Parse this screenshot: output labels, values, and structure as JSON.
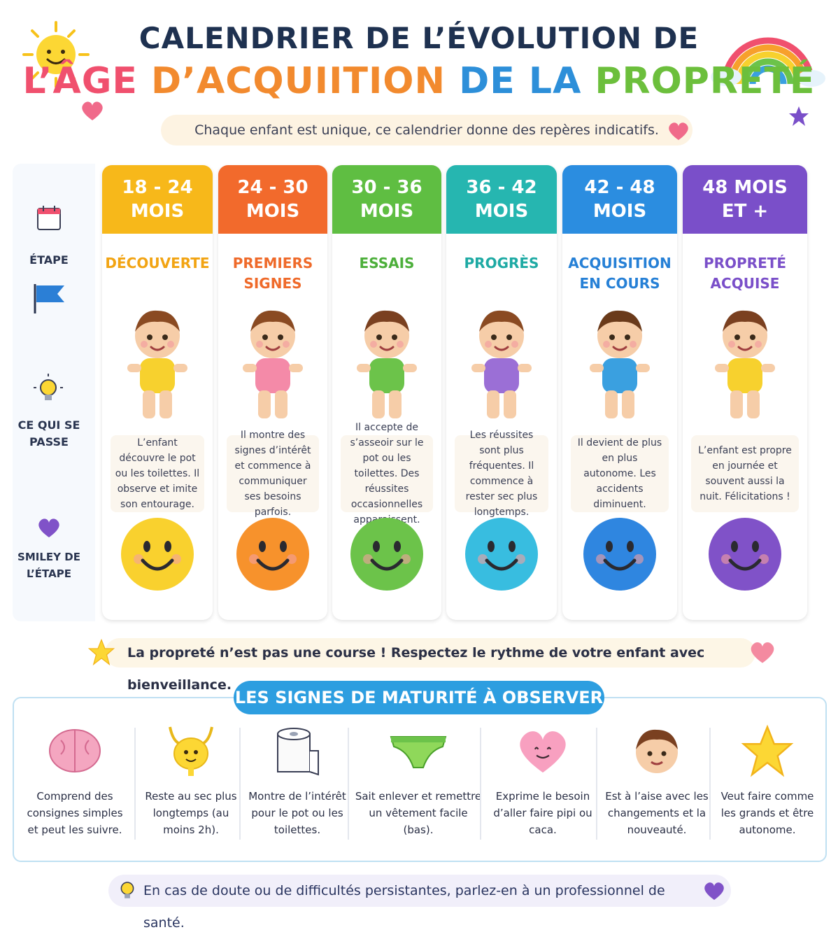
{
  "header": {
    "title_line1": "CALENDRIER DE L’ÉVOLUTION DE",
    "title_line2_parts": [
      {
        "text": "L’ÂGE ",
        "color": "#f0506e"
      },
      {
        "text": "D’ACQUIITION ",
        "color": "#f28a2e"
      },
      {
        "text": "DE LA ",
        "color": "#2d8fd9"
      },
      {
        "text": "PROPRETÉ",
        "color": "#6cbf3c"
      }
    ],
    "subtitle": "Chaque enfant est unique, ce calendrier donne des repères indicatifs."
  },
  "row_labels": {
    "calendar_icon": "calendar-icon",
    "stage": "ÉTAPE",
    "what_happens": "CE QUI SE PASSE",
    "smiley": "SMILEY DE L’ÉTAPE"
  },
  "columns": [
    {
      "age_line1": "18 - 24",
      "age_line2": "MOIS",
      "stage": "DÉCOUVERTE",
      "color": "#f7b81a",
      "stage_color": "#f2a413",
      "desc": "L’enfant découvre le pot ou les toilettes. Il observe et imite son entourage.",
      "smiley_color": "#f9d12e"
    },
    {
      "age_line1": "24 - 30",
      "age_line2": "MOIS",
      "stage": "PREMIERS SIGNES",
      "color": "#f26a2c",
      "stage_color": "#ef6a2a",
      "desc": "Il montre des signes d’intérêt et commence à communiquer ses besoins parfois.",
      "smiley_color": "#f7922c"
    },
    {
      "age_line1": "30 - 36",
      "age_line2": "MOIS",
      "stage": "ESSAIS",
      "color": "#5fbe42",
      "stage_color": "#4caf3a",
      "desc": "Il accepte de s’asseoir sur le pot ou les toilettes. Des réussites occasionnelles apparaissent.",
      "smiley_color": "#6cc34a"
    },
    {
      "age_line1": "36 - 42",
      "age_line2": "MOIS",
      "stage": "PROGRÈS",
      "color": "#26b6b0",
      "stage_color": "#1eaaa4",
      "desc": "Les réussites sont plus fréquentes. Il commence à rester sec plus longtemps.",
      "smiley_color": "#38bde0"
    },
    {
      "age_line1": "42 - 48",
      "age_line2": "MOIS",
      "stage": "ACQUISITION EN COURS",
      "color": "#2b8de0",
      "stage_color": "#2680d6",
      "desc": "Il devient de plus en plus autonome. Les accidents diminuent.",
      "smiley_color": "#2f86e0"
    },
    {
      "age_line1": "48 MOIS",
      "age_line2": "ET +",
      "stage": "PROPRETÉ ACQUISE",
      "color": "#7a4fc9",
      "stage_color": "#7a4fc9",
      "desc": "L’enfant est propre en journée et souvent aussi la nuit. Félicitations !",
      "smiley_color": "#8052c8"
    }
  ],
  "banner": "La propreté n’est pas une course ! Respectez le rythme de votre enfant avec bienveillance.",
  "signs": {
    "title": "LES SIGNES DE MATURITÉ À OBSERVER",
    "items": [
      {
        "icon": "brain-icon",
        "text": "Comprend des consignes simples et peut les suivre."
      },
      {
        "icon": "bladder-icon",
        "text": "Reste au sec plus longtemps (au moins 2h)."
      },
      {
        "icon": "toilet-paper-icon",
        "text": "Montre de l’intérêt pour le pot ou les toilettes."
      },
      {
        "icon": "diaper-icon",
        "text": "Sait enlever et remettre un vêtement facile (bas)."
      },
      {
        "icon": "heart-face-icon",
        "text": "Exprime le besoin d’aller faire pipi ou caca."
      },
      {
        "icon": "child-face-icon",
        "text": "Est à l’aise avec les changements et la nouveauté."
      },
      {
        "icon": "star-icon",
        "text": "Veut faire comme les grands et être autonome."
      }
    ]
  },
  "footer": "En cas de doute ou de difficultés persistantes, parlez-en à un professionnel de santé."
}
